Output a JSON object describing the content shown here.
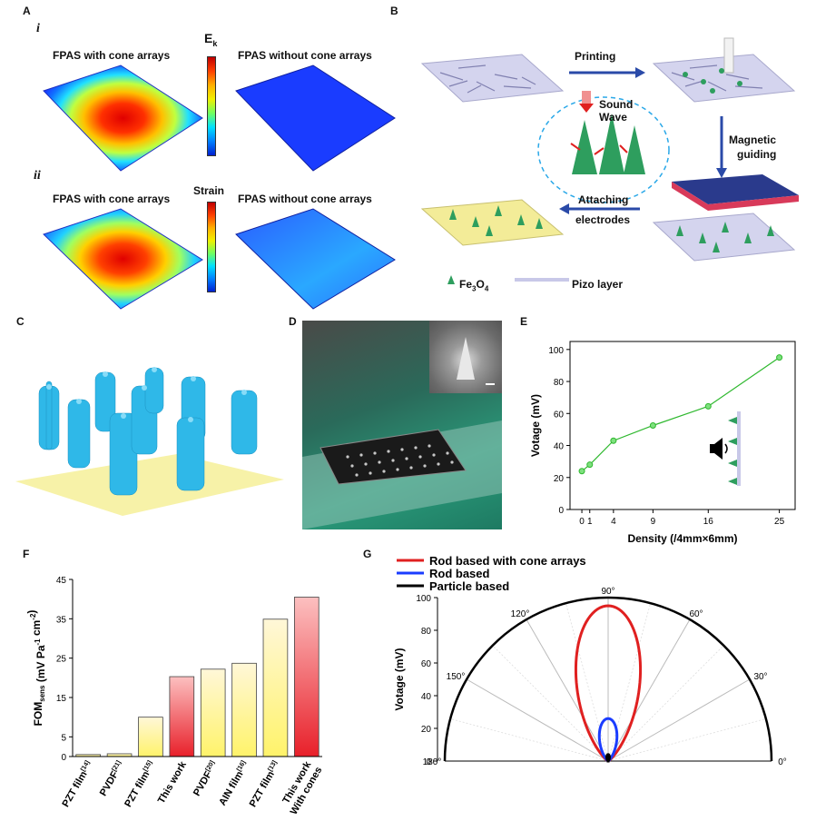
{
  "panels": {
    "A": {
      "label": "A",
      "row_i": "i",
      "row_ii": "ii",
      "title_with": "FPAS with cone arrays",
      "title_without": "FPAS without cone arrays",
      "title_with_2": "FPAS with cone arrays",
      "title_without_2": "FPAS without cone arrays",
      "ek_main": "E",
      "ek_sub": "k",
      "strain": "Strain"
    },
    "B": {
      "label": "B",
      "printing": "Printing",
      "magnetic_1": "Magnetic",
      "magnetic_2": "guiding",
      "attaching_1": "Attaching",
      "attaching_2": "electrodes",
      "sound_1": "Sound",
      "sound_2": "Wave",
      "legend_fe": "Fe",
      "legend_fe_sub1": "3",
      "legend_fe_o": "O",
      "legend_fe_sub2": "4",
      "legend_pizo": "Pizo layer"
    },
    "C": {
      "label": "C"
    },
    "D": {
      "label": "D"
    },
    "E": {
      "label": "E"
    },
    "F": {
      "label": "F"
    },
    "G": {
      "label": "G"
    }
  },
  "colors": {
    "green_line": "#2eb82e",
    "blue_sim": "#1a3cff",
    "cone_green": "#2e9e5e",
    "piezo_layer": "#c8c8e8",
    "electrode_yellow": "#f3ec98",
    "magnet_red": "#d83a5a",
    "magnet_blue": "#2a3a8c",
    "cyan_pillar": "#2fb8e8",
    "base_yellow": "#f7f2a8",
    "bar_yellow": "#fff36a",
    "bar_red": "#e8202a",
    "polar_red": "#e02020",
    "polar_blue": "#1a3cff",
    "polar_black": "#000000"
  },
  "chart_data": [
    {
      "panel": "E",
      "type": "line",
      "x": [
        0,
        1,
        4,
        9,
        16,
        25
      ],
      "y": [
        24,
        28,
        43,
        52.5,
        64.5,
        95
      ],
      "xticks": [
        "0",
        "1",
        "4",
        "9",
        "16",
        "25"
      ],
      "yticks": [
        "0",
        "20",
        "40",
        "60",
        "80",
        "100"
      ],
      "xlabel": "Density (/4mm×6mm)",
      "ylabel": "Votage (mV)",
      "xlim": [
        -1.5,
        27
      ],
      "ylim": [
        0,
        105
      ]
    },
    {
      "panel": "F",
      "type": "bar",
      "categories": [
        {
          "name": "PZT film",
          "ref": "[14]",
          "line2": ""
        },
        {
          "name": "PVDF",
          "ref": "[21]",
          "line2": ""
        },
        {
          "name": "PZT film",
          "ref": "[15]",
          "line2": ""
        },
        {
          "name": "This work",
          "ref": "",
          "line2": ""
        },
        {
          "name": "PVDF",
          "ref": "[20]",
          "line2": ""
        },
        {
          "name": "AIN film",
          "ref": "[16]",
          "line2": ""
        },
        {
          "name": "PZT film",
          "ref": "[13]",
          "line2": ""
        },
        {
          "name": "This work",
          "ref": "",
          "line2": "With cones"
        }
      ],
      "values": [
        0.5,
        0.7,
        10,
        20.3,
        22.2,
        23.7,
        34.9,
        40.5
      ],
      "highlight": [
        false,
        false,
        false,
        true,
        false,
        false,
        false,
        true
      ],
      "yticks": [
        "0",
        "5",
        "15",
        "25",
        "35",
        "45"
      ],
      "ylabel_main": "FOM",
      "ylabel_sub": "sens",
      "ylabel_units": "(mV Pa",
      "ylabel_exp1": "-1",
      "ylabel_mid": " cm",
      "ylabel_exp2": "-2",
      "ylabel_close": ")",
      "ylim": [
        0,
        45
      ]
    },
    {
      "panel": "G",
      "type": "polar",
      "series": [
        {
          "name": "Rod based with cone arrays",
          "peak": 95
        },
        {
          "name": "Rod based",
          "peak": 26
        },
        {
          "name": "Particle based",
          "peak": 4
        }
      ],
      "rlim": [
        0,
        100
      ],
      "rticks": [
        "0",
        "20",
        "40",
        "60",
        "80",
        "100"
      ],
      "angle_labels": [
        "0°",
        "30°",
        "60°",
        "90°",
        "120°",
        "150°",
        "180°"
      ],
      "ylabel": "Votage (mV)"
    }
  ]
}
